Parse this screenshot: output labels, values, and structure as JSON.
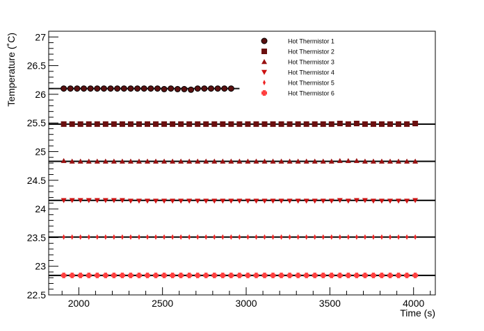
{
  "chart_data": {
    "type": "scatter",
    "title": "",
    "xlabel": "Time (s)",
    "ylabel": "Temperature (˚C)",
    "xlim": [
      1820,
      4130
    ],
    "ylim": [
      22.5,
      27.1
    ],
    "xticks": [
      2000,
      2500,
      3000,
      3500,
      4000
    ],
    "xtick_labels": [
      "2000",
      "2500",
      "3000",
      "3500",
      "4000"
    ],
    "yticks": [
      22.5,
      23,
      23.5,
      24,
      24.5,
      25,
      25.5,
      26,
      26.5,
      27
    ],
    "ytick_labels": [
      "22.5",
      "23",
      "23.5",
      "24",
      "24.5",
      "25",
      "25.5",
      "26",
      "26.5",
      "27"
    ],
    "grid": false,
    "legend_position": "top-right",
    "series": [
      {
        "name": "Hot Thermistor 1",
        "marker": "circle",
        "color": "#7a1a1a",
        "fit_value": 26.1,
        "fit_xrange": [
          1820,
          2960
        ],
        "x": [
          1910,
          1950,
          1990,
          2030,
          2070,
          2110,
          2150,
          2190,
          2230,
          2270,
          2310,
          2350,
          2390,
          2430,
          2470,
          2510,
          2550,
          2590,
          2630,
          2670,
          2710,
          2750,
          2790,
          2830,
          2870,
          2910
        ],
        "y": [
          26.1,
          26.1,
          26.1,
          26.1,
          26.1,
          26.1,
          26.1,
          26.1,
          26.1,
          26.1,
          26.1,
          26.1,
          26.1,
          26.1,
          26.1,
          26.09,
          26.1,
          26.09,
          26.09,
          26.08,
          26.1,
          26.1,
          26.1,
          26.1,
          26.1,
          26.1
        ]
      },
      {
        "name": "Hot Thermistor 2",
        "marker": "square",
        "color": "#6b0f0f",
        "fit_value": 25.48,
        "fit_xrange": [
          1820,
          4130
        ],
        "x": [
          1910,
          1960,
          2010,
          2060,
          2110,
          2160,
          2210,
          2260,
          2310,
          2360,
          2410,
          2460,
          2510,
          2560,
          2610,
          2660,
          2710,
          2760,
          2810,
          2860,
          2910,
          2960,
          3010,
          3060,
          3110,
          3160,
          3210,
          3260,
          3310,
          3360,
          3410,
          3460,
          3510,
          3560,
          3610,
          3660,
          3710,
          3760,
          3810,
          3860,
          3910,
          3960,
          4010
        ],
        "y": [
          25.48,
          25.48,
          25.48,
          25.48,
          25.48,
          25.48,
          25.48,
          25.48,
          25.48,
          25.48,
          25.48,
          25.48,
          25.48,
          25.48,
          25.48,
          25.48,
          25.48,
          25.48,
          25.48,
          25.48,
          25.48,
          25.48,
          25.48,
          25.48,
          25.48,
          25.48,
          25.48,
          25.48,
          25.48,
          25.48,
          25.48,
          25.48,
          25.48,
          25.49,
          25.48,
          25.49,
          25.48,
          25.48,
          25.48,
          25.48,
          25.48,
          25.48,
          25.49
        ]
      },
      {
        "name": "Hot Thermistor 3",
        "marker": "triangle-up",
        "color": "#991111",
        "fit_value": 24.83,
        "fit_xrange": [
          1820,
          4130
        ],
        "x": [
          1910,
          1960,
          2010,
          2060,
          2110,
          2160,
          2210,
          2260,
          2310,
          2360,
          2410,
          2460,
          2510,
          2560,
          2610,
          2660,
          2710,
          2760,
          2810,
          2860,
          2910,
          2960,
          3010,
          3060,
          3110,
          3160,
          3210,
          3260,
          3310,
          3360,
          3410,
          3460,
          3510,
          3560,
          3610,
          3660,
          3710,
          3760,
          3810,
          3860,
          3910,
          3960,
          4010
        ],
        "y": [
          24.84,
          24.83,
          24.83,
          24.83,
          24.83,
          24.83,
          24.83,
          24.83,
          24.83,
          24.83,
          24.83,
          24.83,
          24.83,
          24.83,
          24.83,
          24.83,
          24.83,
          24.83,
          24.83,
          24.83,
          24.83,
          24.83,
          24.83,
          24.83,
          24.83,
          24.83,
          24.83,
          24.83,
          24.83,
          24.83,
          24.83,
          24.83,
          24.83,
          24.84,
          24.84,
          24.84,
          24.83,
          24.83,
          24.83,
          24.83,
          24.83,
          24.83,
          24.83
        ]
      },
      {
        "name": "Hot Thermistor 4",
        "marker": "triangle-down",
        "color": "#cc1111",
        "fit_value": 24.15,
        "fit_xrange": [
          1820,
          4130
        ],
        "x": [
          1910,
          1960,
          2010,
          2060,
          2110,
          2160,
          2210,
          2260,
          2310,
          2360,
          2410,
          2460,
          2510,
          2560,
          2610,
          2660,
          2710,
          2760,
          2810,
          2860,
          2910,
          2960,
          3010,
          3060,
          3110,
          3160,
          3210,
          3260,
          3310,
          3360,
          3410,
          3460,
          3510,
          3560,
          3610,
          3660,
          3710,
          3760,
          3810,
          3860,
          3910,
          3960,
          4010
        ],
        "y": [
          24.15,
          24.15,
          24.15,
          24.15,
          24.15,
          24.15,
          24.15,
          24.15,
          24.14,
          24.14,
          24.14,
          24.14,
          24.14,
          24.14,
          24.14,
          24.14,
          24.14,
          24.14,
          24.14,
          24.14,
          24.14,
          24.14,
          24.14,
          24.14,
          24.14,
          24.14,
          24.14,
          24.14,
          24.14,
          24.14,
          24.14,
          24.14,
          24.14,
          24.15,
          24.14,
          24.15,
          24.15,
          24.14,
          24.14,
          24.14,
          24.14,
          24.14,
          24.15
        ]
      },
      {
        "name": "Hot Thermistor 5",
        "marker": "diamond-small",
        "color": "#ee2222",
        "fit_value": 23.51,
        "fit_xrange": [
          1820,
          4130
        ],
        "x": [
          1910,
          1960,
          2010,
          2060,
          2110,
          2160,
          2210,
          2260,
          2310,
          2360,
          2410,
          2460,
          2510,
          2560,
          2610,
          2660,
          2710,
          2760,
          2810,
          2860,
          2910,
          2960,
          3010,
          3060,
          3110,
          3160,
          3210,
          3260,
          3310,
          3360,
          3410,
          3460,
          3510,
          3560,
          3610,
          3660,
          3710,
          3760,
          3810,
          3860,
          3910,
          3960,
          4010
        ],
        "y": [
          23.51,
          23.51,
          23.51,
          23.51,
          23.51,
          23.51,
          23.51,
          23.51,
          23.51,
          23.51,
          23.51,
          23.51,
          23.51,
          23.51,
          23.51,
          23.51,
          23.51,
          23.51,
          23.51,
          23.51,
          23.51,
          23.51,
          23.51,
          23.51,
          23.51,
          23.51,
          23.51,
          23.51,
          23.51,
          23.51,
          23.51,
          23.51,
          23.51,
          23.51,
          23.51,
          23.51,
          23.51,
          23.51,
          23.51,
          23.51,
          23.51,
          23.51,
          23.51
        ]
      },
      {
        "name": "Hot Thermistor 6",
        "marker": "cross",
        "color": "#ff4040",
        "fit_value": 22.84,
        "fit_xrange": [
          1820,
          4130
        ],
        "x": [
          1910,
          1960,
          2010,
          2060,
          2110,
          2160,
          2210,
          2260,
          2310,
          2360,
          2410,
          2460,
          2510,
          2560,
          2610,
          2660,
          2710,
          2760,
          2810,
          2860,
          2910,
          2960,
          3010,
          3060,
          3110,
          3160,
          3210,
          3260,
          3310,
          3360,
          3410,
          3460,
          3510,
          3560,
          3610,
          3660,
          3710,
          3760,
          3810,
          3860,
          3910,
          3960,
          4010
        ],
        "y": [
          22.84,
          22.84,
          22.84,
          22.84,
          22.84,
          22.84,
          22.84,
          22.84,
          22.84,
          22.84,
          22.84,
          22.84,
          22.84,
          22.84,
          22.84,
          22.84,
          22.84,
          22.84,
          22.84,
          22.84,
          22.84,
          22.84,
          22.84,
          22.84,
          22.84,
          22.84,
          22.84,
          22.84,
          22.84,
          22.84,
          22.84,
          22.84,
          22.84,
          22.84,
          22.84,
          22.84,
          22.84,
          22.84,
          22.84,
          22.84,
          22.84,
          22.84,
          22.84
        ]
      }
    ]
  }
}
